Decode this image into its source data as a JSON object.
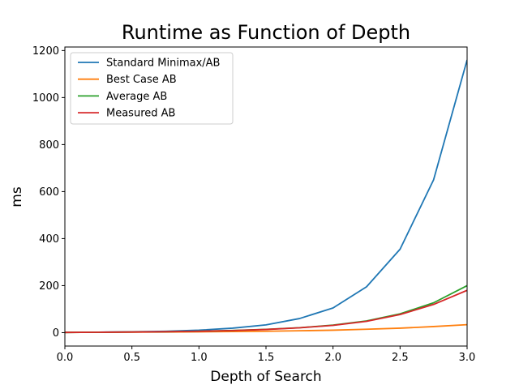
{
  "chart_data": {
    "type": "line",
    "title": "Runtime as Function of Depth",
    "xlabel": "Depth of Search",
    "ylabel": "ms",
    "xlim": [
      0.0,
      3.0
    ],
    "ylim": [
      -57,
      1215
    ],
    "xticks": [
      0.0,
      0.5,
      1.0,
      1.5,
      2.0,
      2.5,
      3.0
    ],
    "xtick_labels": [
      "0.0",
      "0.5",
      "1.0",
      "1.5",
      "2.0",
      "2.5",
      "3.0"
    ],
    "yticks": [
      0,
      200,
      400,
      600,
      800,
      1000,
      1200
    ],
    "ytick_labels": [
      "0",
      "200",
      "400",
      "600",
      "800",
      "1000",
      "1200"
    ],
    "grid": false,
    "legend_position": "top-left",
    "x": [
      0.0,
      0.25,
      0.5,
      0.75,
      1.0,
      1.25,
      1.5,
      1.75,
      2.0,
      2.25,
      2.5,
      2.75,
      3.0
    ],
    "series": [
      {
        "name": "Standard Minimax/AB",
        "color": "#1f77b4",
        "values": [
          1,
          2,
          3.5,
          6,
          10.5,
          19,
          33,
          60,
          105,
          195,
          355,
          650,
          1160
        ]
      },
      {
        "name": "Best Case AB",
        "color": "#ff7f0e",
        "values": [
          1,
          1.5,
          2,
          2.7,
          3.4,
          4.6,
          5.8,
          8,
          10.5,
          14.5,
          19,
          26,
          34
        ]
      },
      {
        "name": "Average AB",
        "color": "#2ca02c",
        "values": [
          1,
          1.7,
          2.6,
          4,
          5.9,
          9.2,
          14,
          21,
          32,
          50,
          80,
          127,
          200
        ]
      },
      {
        "name": "Measured AB",
        "color": "#d62728",
        "values": [
          1,
          1.7,
          2.6,
          4,
          5.8,
          9,
          13.5,
          20.5,
          31,
          48,
          77,
          120,
          180
        ]
      }
    ]
  }
}
